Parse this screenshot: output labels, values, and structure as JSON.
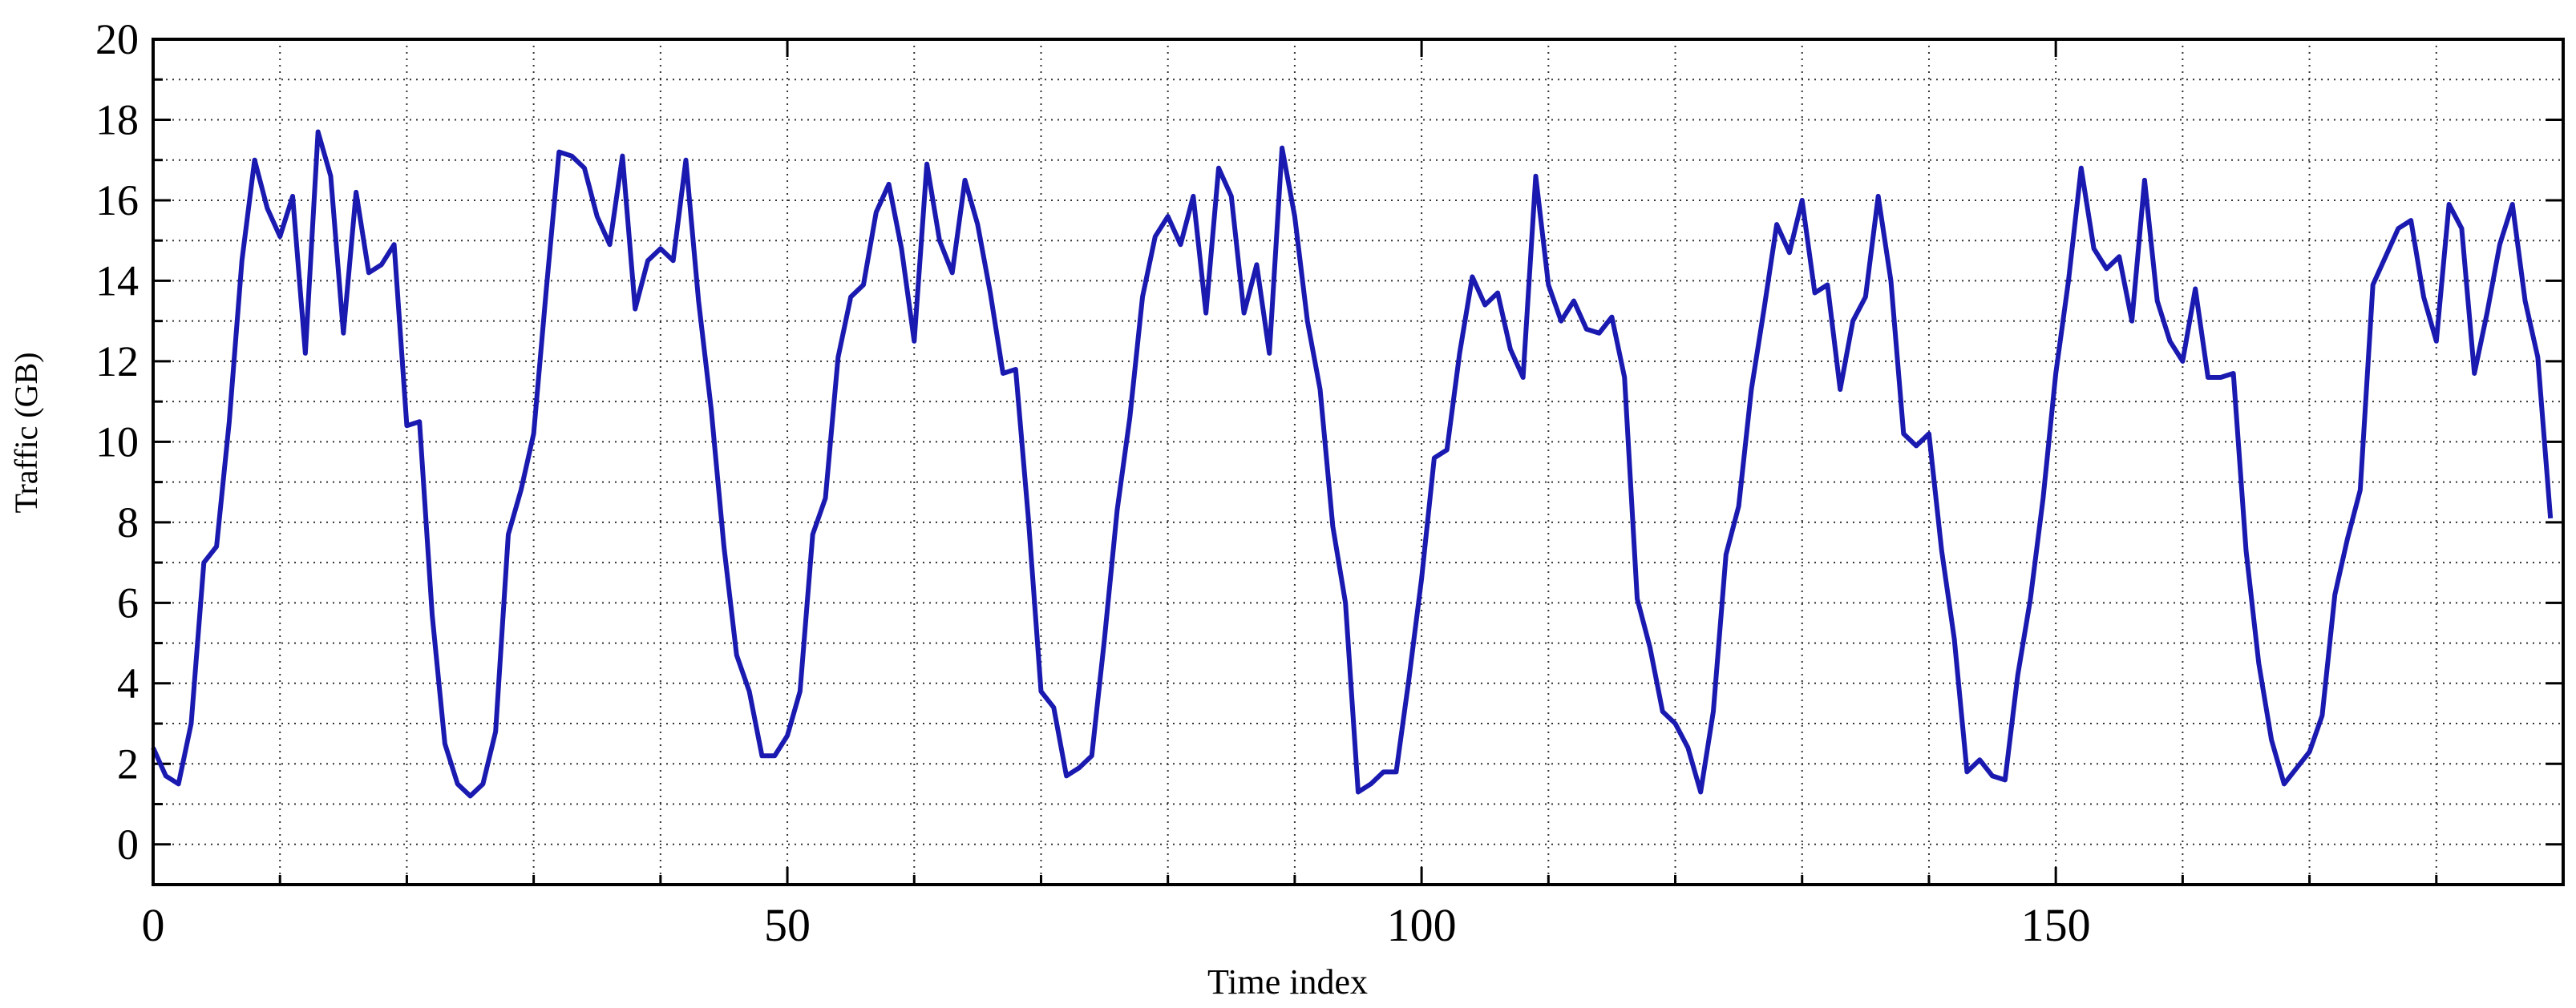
{
  "chart_data": {
    "type": "line",
    "xlabel": "Time index",
    "ylabel": "Traffic (GB)",
    "xlim": [
      0,
      190
    ],
    "ylim": [
      -1,
      20
    ],
    "xticks": [
      0,
      50,
      100,
      150
    ],
    "yticks": [
      0,
      2,
      4,
      6,
      8,
      10,
      12,
      14,
      16,
      18,
      20
    ],
    "x_minor_ticks": [
      10,
      20,
      30,
      40,
      60,
      70,
      80,
      90,
      110,
      120,
      130,
      140,
      160,
      170,
      180
    ],
    "y_minor_ticks": [
      1,
      3,
      5,
      7,
      9,
      11,
      13,
      15,
      17,
      19
    ],
    "grid": true,
    "series": [
      {
        "name": "Traffic",
        "color": "#1a1ab0",
        "x": [
          0,
          1,
          2,
          3,
          4,
          5,
          6,
          7,
          8,
          9,
          10,
          11,
          12,
          13,
          14,
          15,
          16,
          17,
          18,
          19,
          20,
          21,
          22,
          23,
          24,
          25,
          26,
          27,
          28,
          29,
          30,
          31,
          32,
          33,
          34,
          35,
          36,
          37,
          38,
          39,
          40,
          41,
          42,
          43,
          44,
          45,
          46,
          47,
          48,
          49,
          50,
          51,
          52,
          53,
          54,
          55,
          56,
          57,
          58,
          59,
          60,
          61,
          62,
          63,
          64,
          65,
          66,
          67,
          68,
          69,
          70,
          71,
          72,
          73,
          74,
          75,
          76,
          77,
          78,
          79,
          80,
          81,
          82,
          83,
          84,
          85,
          86,
          87,
          88,
          89,
          90,
          91,
          92,
          93,
          94,
          95,
          96,
          97,
          98,
          99,
          100,
          101,
          102,
          103,
          104,
          105,
          106,
          107,
          108,
          109,
          110,
          111,
          112,
          113,
          114,
          115,
          116,
          117,
          118,
          119,
          120,
          121,
          122,
          123,
          124,
          125,
          126,
          127,
          128,
          129,
          130,
          131,
          132,
          133,
          134,
          135,
          136,
          137,
          138,
          139,
          140,
          141,
          142,
          143,
          144,
          145,
          146,
          147,
          148,
          149,
          150,
          151,
          152,
          153,
          154,
          155,
          156,
          157,
          158,
          159,
          160,
          161,
          162,
          163,
          164,
          165,
          166,
          167,
          168,
          169,
          170,
          171,
          172,
          173,
          174,
          175,
          176,
          177,
          178,
          179,
          180,
          181,
          182,
          183,
          184,
          185,
          186,
          187,
          188,
          189
        ],
        "values": [
          2.4,
          1.7,
          1.5,
          3.0,
          7.0,
          7.4,
          10.5,
          14.5,
          17.0,
          15.8,
          15.1,
          16.1,
          12.2,
          17.7,
          16.6,
          12.7,
          16.2,
          14.2,
          14.4,
          14.9,
          10.4,
          10.5,
          5.7,
          2.5,
          1.5,
          1.2,
          1.5,
          2.8,
          7.7,
          8.8,
          10.2,
          13.8,
          17.2,
          17.1,
          16.8,
          15.6,
          14.9,
          17.1,
          13.3,
          14.5,
          14.8,
          14.5,
          17.0,
          13.5,
          10.8,
          7.4,
          4.7,
          3.8,
          2.2,
          2.2,
          2.7,
          3.8,
          7.7,
          8.6,
          12.1,
          13.6,
          13.9,
          15.7,
          16.4,
          14.8,
          12.5,
          16.9,
          15.0,
          14.2,
          16.5,
          15.4,
          13.7,
          11.7,
          11.8,
          8.1,
          3.8,
          3.4,
          1.7,
          1.9,
          2.2,
          5.1,
          8.3,
          10.6,
          13.6,
          15.1,
          15.6,
          14.9,
          16.1,
          13.2,
          16.8,
          16.1,
          13.2,
          14.4,
          12.2,
          17.3,
          15.6,
          13.0,
          11.3,
          7.9,
          6.0,
          1.3,
          1.5,
          1.8,
          1.8,
          4.1,
          6.6,
          9.6,
          9.8,
          12.2,
          14.1,
          13.4,
          13.7,
          12.3,
          11.6,
          16.6,
          13.9,
          13.0,
          13.5,
          12.8,
          12.7,
          13.1,
          11.6,
          6.1,
          4.9,
          3.3,
          3.0,
          2.4,
          1.3,
          3.3,
          7.2,
          8.4,
          11.3,
          13.3,
          15.4,
          14.7,
          16.0,
          13.7,
          13.9,
          11.3,
          13.0,
          13.6,
          16.1,
          14.0,
          10.2,
          9.9,
          10.2,
          7.3,
          5.1,
          1.8,
          2.1,
          1.7,
          1.6,
          4.2,
          6.1,
          8.6,
          11.7,
          14.0,
          16.8,
          14.8,
          14.3,
          14.6,
          13.0,
          16.5,
          13.5,
          12.5,
          12.0,
          13.8,
          11.6,
          11.6,
          11.7,
          7.3,
          4.5,
          2.6,
          1.5,
          1.9,
          2.3,
          3.2,
          6.2,
          7.6,
          8.8,
          13.9,
          14.6,
          15.3,
          15.5,
          13.6,
          12.5,
          15.9,
          15.3,
          11.7,
          13.2,
          14.9,
          15.9,
          13.5,
          12.1,
          8.1
        ]
      }
    ]
  }
}
